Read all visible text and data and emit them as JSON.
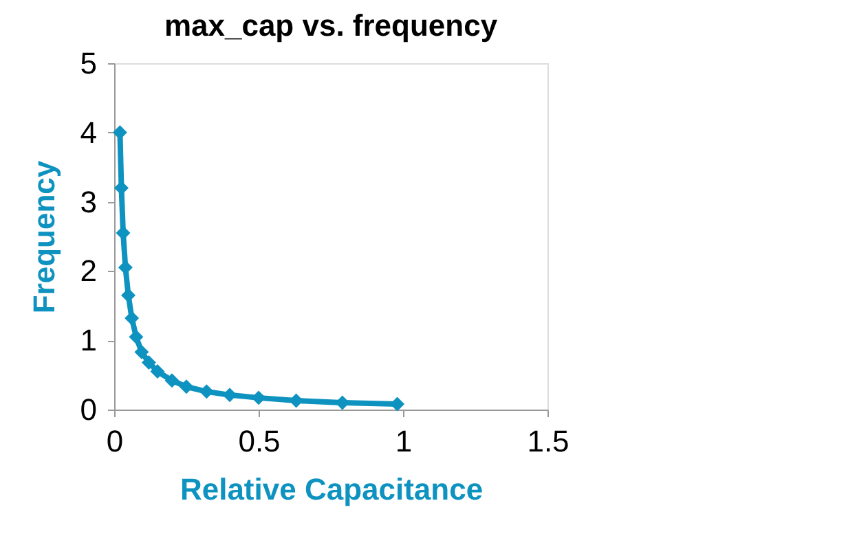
{
  "chart_data": {
    "type": "line",
    "title": "max_cap vs. frequency",
    "xlabel": "Relative Capacitance",
    "ylabel": "Frequency",
    "series": [
      {
        "color": "#0e93c0",
        "x": [
          0.02,
          0.025,
          0.031,
          0.039,
          0.049,
          0.061,
          0.076,
          0.095,
          0.12,
          0.15,
          0.2,
          0.25,
          0.32,
          0.4,
          0.5,
          0.63,
          0.79,
          0.98
        ],
        "values": [
          4.0,
          3.2,
          2.55,
          2.05,
          1.65,
          1.32,
          1.05,
          0.83,
          0.68,
          0.55,
          0.42,
          0.33,
          0.26,
          0.21,
          0.17,
          0.13,
          0.1,
          0.08
        ]
      }
    ],
    "xlim": [
      0,
      1.5
    ],
    "xticks": [
      0,
      0.5,
      1,
      1.5
    ],
    "ylim": [
      0,
      5
    ],
    "yticks": [
      0,
      1,
      2,
      3,
      4,
      5
    ],
    "grid": false,
    "marker": "diamond",
    "line_style": "solid",
    "legend": false
  }
}
